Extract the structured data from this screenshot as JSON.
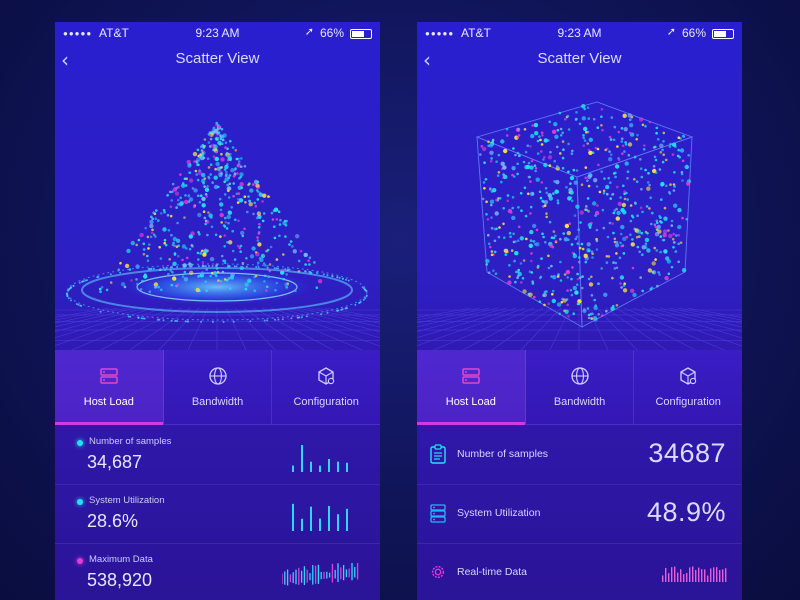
{
  "status": {
    "carrier": "AT&T",
    "time": "9:23 AM",
    "battery": "66%"
  },
  "nav": {
    "back_glyph": "‹",
    "title": "Scatter View"
  },
  "tabs": [
    {
      "label": "Host Load",
      "icon": "server-icon",
      "active": true
    },
    {
      "label": "Bandwidth",
      "icon": "globe-icon",
      "active": false
    },
    {
      "label": "Configuration",
      "icon": "box-gear-icon",
      "active": false
    }
  ],
  "left_stats": [
    {
      "label": "Number of samples",
      "value": "34,687",
      "dot_color": "#22e3f5"
    },
    {
      "label": "System Utilization",
      "value": "28.6%",
      "dot_color": "#22e3f5"
    },
    {
      "label": "Maximum Data",
      "value": "538,920",
      "dot_color": "#e13cd6"
    }
  ],
  "right_stats": [
    {
      "label": "Number of samples",
      "value": "34687",
      "icon": "clipboard-icon"
    },
    {
      "label": "System Utilization",
      "value": "48.9%",
      "icon": "server-stack-icon"
    },
    {
      "label": "Real-time Data",
      "value": "",
      "icon": "gear-icon"
    }
  ],
  "colors": {
    "accent": "#d13bd9",
    "cyan": "#22e3f5",
    "magenta": "#e13cd6"
  }
}
